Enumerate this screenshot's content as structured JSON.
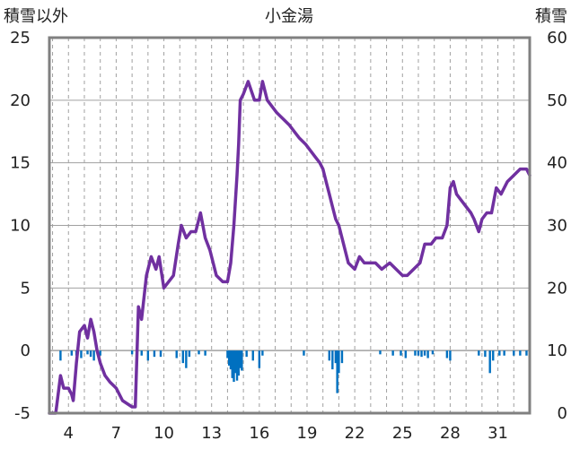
{
  "chart_data": {
    "type": "line",
    "title": "小金湯",
    "left_axis_label": "積雪以外",
    "right_axis_label": "積雪",
    "left_ylim": [
      -5,
      25
    ],
    "left_ticks": [
      "-5",
      "0",
      "5",
      "10",
      "15",
      "20",
      "25"
    ],
    "right_ylim": [
      0,
      60
    ],
    "right_ticks": [
      "0",
      "10",
      "20",
      "30",
      "40",
      "50",
      "60"
    ],
    "xlim": [
      2.8,
      33.0
    ],
    "x_tick_labels": [
      "4",
      "7",
      "10",
      "13",
      "16",
      "19",
      "22",
      "25",
      "28",
      "31"
    ],
    "vertical_gridlines": "dashed, one per day",
    "colors": {
      "snow_depth": "#7030a0",
      "precip": "#0070c0",
      "frame": "#808080",
      "grid": "#a0a0a0"
    },
    "series": [
      {
        "kind": "line",
        "axis": "right",
        "points": [
          [
            2.8,
            0
          ],
          [
            3.2,
            0
          ],
          [
            3.5,
            6
          ],
          [
            3.7,
            4
          ],
          [
            4.0,
            4
          ],
          [
            4.2,
            3
          ],
          [
            4.3,
            2
          ],
          [
            4.5,
            8
          ],
          [
            4.7,
            13
          ],
          [
            5.0,
            14
          ],
          [
            5.2,
            12
          ],
          [
            5.4,
            15
          ],
          [
            5.6,
            13
          ],
          [
            5.8,
            10
          ],
          [
            6.0,
            8
          ],
          [
            6.3,
            6
          ],
          [
            6.6,
            5
          ],
          [
            7.0,
            4
          ],
          [
            7.4,
            2
          ],
          [
            8.0,
            1
          ],
          [
            8.2,
            1
          ],
          [
            8.4,
            17
          ],
          [
            8.6,
            15
          ],
          [
            8.9,
            22
          ],
          [
            9.2,
            25
          ],
          [
            9.5,
            23
          ],
          [
            9.7,
            25
          ],
          [
            10.0,
            20
          ],
          [
            10.6,
            22
          ],
          [
            10.9,
            27
          ],
          [
            11.1,
            30
          ],
          [
            11.4,
            28
          ],
          [
            11.7,
            29
          ],
          [
            12.0,
            29
          ],
          [
            12.3,
            32
          ],
          [
            12.6,
            28
          ],
          [
            12.9,
            26
          ],
          [
            13.3,
            22
          ],
          [
            13.7,
            21
          ],
          [
            14.0,
            21
          ],
          [
            14.2,
            24
          ],
          [
            14.4,
            30
          ],
          [
            14.6,
            38
          ],
          [
            14.7,
            43
          ],
          [
            14.8,
            50
          ],
          [
            15.0,
            51
          ],
          [
            15.3,
            53
          ],
          [
            15.7,
            50
          ],
          [
            16.0,
            50
          ],
          [
            16.2,
            53
          ],
          [
            16.5,
            50
          ],
          [
            16.8,
            49
          ],
          [
            17.1,
            48
          ],
          [
            17.5,
            47
          ],
          [
            17.9,
            46
          ],
          [
            18.2,
            45
          ],
          [
            18.5,
            44
          ],
          [
            18.9,
            43
          ],
          [
            19.2,
            42
          ],
          [
            19.5,
            41
          ],
          [
            19.8,
            40
          ],
          [
            20.0,
            39
          ],
          [
            20.2,
            37
          ],
          [
            20.4,
            35
          ],
          [
            20.6,
            33
          ],
          [
            20.8,
            31
          ],
          [
            21.0,
            30
          ],
          [
            21.3,
            27
          ],
          [
            21.6,
            24
          ],
          [
            22.0,
            23
          ],
          [
            22.3,
            25
          ],
          [
            22.6,
            24
          ],
          [
            23.0,
            24
          ],
          [
            23.3,
            24
          ],
          [
            23.7,
            23
          ],
          [
            24.2,
            24
          ],
          [
            24.6,
            23
          ],
          [
            25.0,
            22
          ],
          [
            25.3,
            22
          ],
          [
            25.7,
            23
          ],
          [
            26.1,
            24
          ],
          [
            26.4,
            27
          ],
          [
            26.8,
            27
          ],
          [
            27.1,
            28
          ],
          [
            27.5,
            28
          ],
          [
            27.8,
            30
          ],
          [
            28.0,
            36
          ],
          [
            28.2,
            37
          ],
          [
            28.4,
            35
          ],
          [
            28.7,
            34
          ],
          [
            29.0,
            33
          ],
          [
            29.3,
            32
          ],
          [
            29.5,
            31
          ],
          [
            29.8,
            29
          ],
          [
            30.0,
            31
          ],
          [
            30.3,
            32
          ],
          [
            30.6,
            32
          ],
          [
            30.9,
            36
          ],
          [
            31.2,
            35
          ],
          [
            31.6,
            37
          ],
          [
            32.0,
            38
          ],
          [
            32.4,
            39
          ],
          [
            32.8,
            39
          ],
          [
            33.0,
            38
          ]
        ]
      },
      {
        "kind": "line",
        "axis": "left",
        "points": []
      },
      {
        "kind": "bar",
        "axis": "left",
        "points": [
          [
            3.5,
            -0.8
          ],
          [
            4.2,
            -0.4
          ],
          [
            4.5,
            -0.4
          ],
          [
            4.8,
            -0.6
          ],
          [
            5.2,
            -0.3
          ],
          [
            5.4,
            -0.5
          ],
          [
            5.6,
            -0.8
          ],
          [
            6.0,
            -0.4
          ],
          [
            8.0,
            -0.3
          ],
          [
            8.6,
            -0.4
          ],
          [
            9.0,
            -0.8
          ],
          [
            9.4,
            -0.5
          ],
          [
            9.8,
            -0.5
          ],
          [
            10.8,
            -0.6
          ],
          [
            11.2,
            -1.0
          ],
          [
            11.4,
            -1.4
          ],
          [
            11.6,
            -0.5
          ],
          [
            12.2,
            -0.3
          ],
          [
            12.6,
            -0.4
          ],
          [
            14.0,
            -0.6
          ],
          [
            14.1,
            -1.2
          ],
          [
            14.2,
            -1.5
          ],
          [
            14.3,
            -2.2
          ],
          [
            14.4,
            -2.5
          ],
          [
            14.5,
            -1.8
          ],
          [
            14.6,
            -2.4
          ],
          [
            14.7,
            -2.0
          ],
          [
            14.8,
            -1.4
          ],
          [
            14.9,
            -1.6
          ],
          [
            15.2,
            -0.5
          ],
          [
            15.6,
            -0.8
          ],
          [
            16.0,
            -1.4
          ],
          [
            16.2,
            -0.4
          ],
          [
            18.8,
            -0.4
          ],
          [
            20.4,
            -0.8
          ],
          [
            20.6,
            -1.5
          ],
          [
            20.8,
            -1.0
          ],
          [
            20.9,
            -3.4
          ],
          [
            21.0,
            -1.8
          ],
          [
            21.2,
            -1.0
          ],
          [
            23.6,
            -0.3
          ],
          [
            24.4,
            -0.4
          ],
          [
            24.9,
            -0.4
          ],
          [
            25.2,
            -0.6
          ],
          [
            25.8,
            -0.4
          ],
          [
            26.0,
            -0.4
          ],
          [
            26.2,
            -0.5
          ],
          [
            26.4,
            -0.4
          ],
          [
            26.6,
            -0.6
          ],
          [
            26.9,
            -0.3
          ],
          [
            27.8,
            -0.6
          ],
          [
            28.0,
            -0.8
          ],
          [
            29.8,
            -0.4
          ],
          [
            30.2,
            -0.5
          ],
          [
            30.5,
            -1.8
          ],
          [
            30.7,
            -0.8
          ],
          [
            31.1,
            -0.4
          ],
          [
            31.4,
            -0.4
          ],
          [
            32.0,
            -0.4
          ],
          [
            32.4,
            -0.4
          ],
          [
            32.8,
            -0.4
          ]
        ]
      }
    ]
  }
}
